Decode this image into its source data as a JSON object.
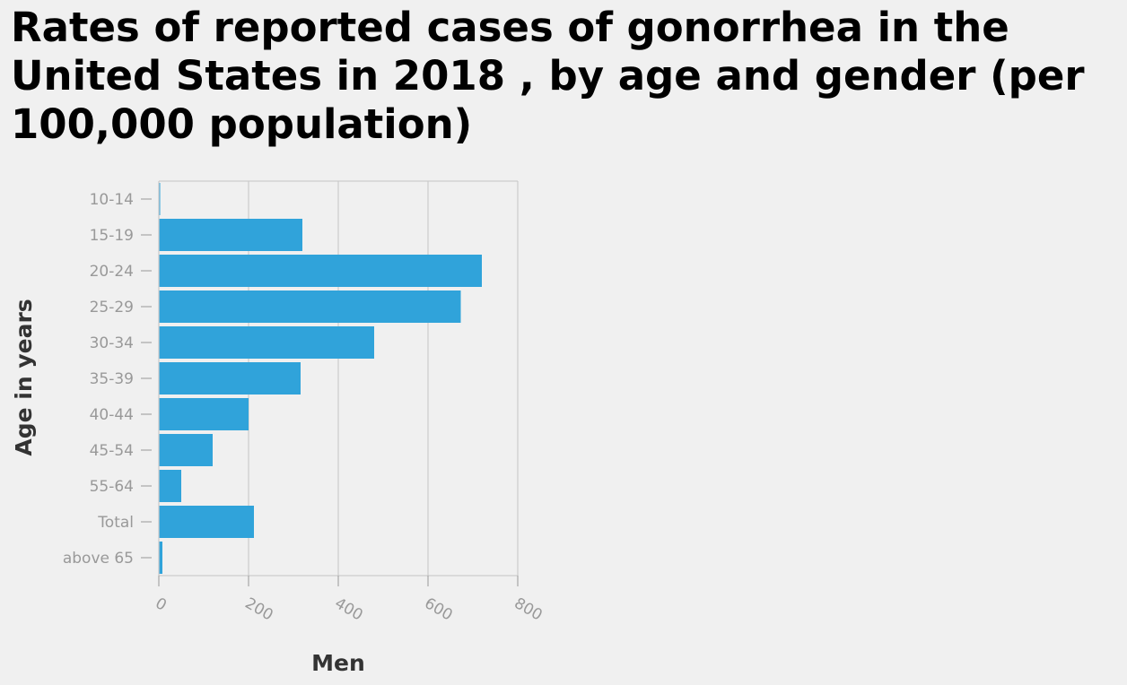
{
  "chart_data": {
    "type": "bar",
    "orientation": "horizontal",
    "title": "Rates of reported cases of gonorrhea in the United States in 2018 , by age and gender (per 100,000 population)",
    "xlabel": "Men",
    "ylabel": "Age in years",
    "categories": [
      "10-14",
      "15-19",
      "20-24",
      "25-29",
      "30-34",
      "35-39",
      "40-44",
      "45-54",
      "55-64",
      "Total",
      "above 65"
    ],
    "values": [
      3,
      320,
      720,
      673,
      480,
      316,
      200,
      120,
      50,
      212,
      8
    ],
    "xlim": [
      0,
      800
    ],
    "xticks": [
      0,
      200,
      400,
      600,
      800
    ],
    "grid": "vertical",
    "bar_color": "#30a3da"
  }
}
